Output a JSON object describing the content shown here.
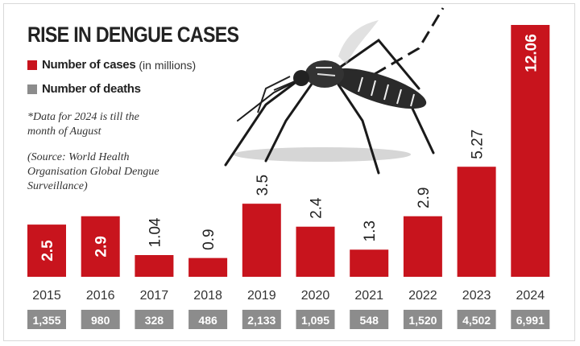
{
  "title": "RISE IN DENGUE CASES",
  "legend": {
    "cases_label": "Number of cases",
    "cases_unit": "(in millions)",
    "deaths_label": "Number of deaths"
  },
  "note": "*Data for 2024 is till the month of August",
  "source": "(Source: World Health Organisation Global Dengue Surveillance)",
  "colors": {
    "cases": "#c8141d",
    "deaths": "#8c8c8c",
    "label_on_bar": "#ffffff",
    "label_above_bar": "#222222"
  },
  "chart_data": {
    "type": "bar",
    "categories": [
      "2015",
      "2016",
      "2017",
      "2018",
      "2019",
      "2020",
      "2021",
      "2022",
      "2023",
      "2024"
    ],
    "series": [
      {
        "name": "Number of cases",
        "unit": "millions",
        "values": [
          2.5,
          2.9,
          1.04,
          0.9,
          3.5,
          2.4,
          1.3,
          2.9,
          5.27,
          12.06
        ],
        "labels": [
          "2.5",
          "2.9",
          "1.04",
          "0.9",
          "3.5",
          "2.4",
          "1.3",
          "2.9",
          "5.27",
          "12.06"
        ]
      },
      {
        "name": "Number of deaths",
        "values": [
          1355,
          980,
          328,
          486,
          2133,
          1095,
          548,
          1520,
          4502,
          6991
        ],
        "labels": [
          "1,355",
          "980",
          "328",
          "486",
          "2,133",
          "1,095",
          "548",
          "1,520",
          "4,502",
          "6,991"
        ]
      }
    ],
    "label_inside_bar": [
      true,
      true,
      false,
      false,
      false,
      false,
      false,
      false,
      false,
      true
    ],
    "ylim": [
      0,
      12.06
    ],
    "axes_visible": false,
    "grid": false,
    "legend_position": "top-left"
  }
}
